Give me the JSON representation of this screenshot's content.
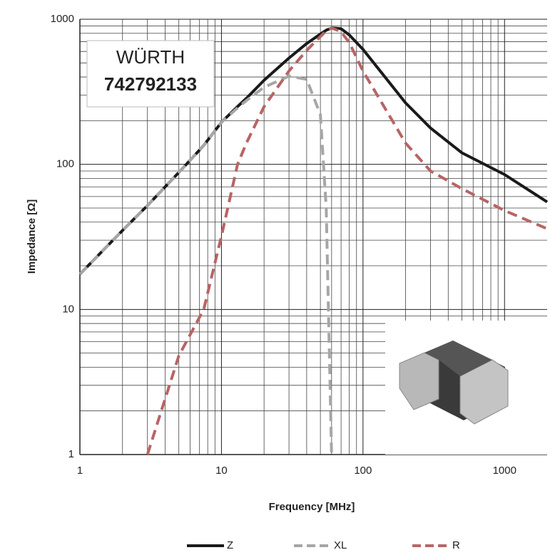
{
  "chart_data": {
    "type": "line",
    "annotation": {
      "brand": "WÜRTH",
      "part_number": "742792133"
    },
    "x_label": "Frequency [MHz]",
    "y_label": "Impedance [Ω]",
    "x": [
      1,
      2,
      3,
      5,
      7.5,
      10,
      13,
      15,
      20,
      30,
      40,
      50,
      55,
      60,
      70,
      80,
      100,
      200,
      300,
      500,
      1000,
      2000
    ],
    "series": [
      {
        "name": "Z",
        "color": "#1a1a1a",
        "style": "solid",
        "values": [
          17.5,
          35,
          52,
          88,
          135,
          195,
          250,
          285,
          380,
          540,
          680,
          790,
          840,
          870,
          860,
          780,
          620,
          265,
          178,
          120,
          85,
          55
        ]
      },
      {
        "name": "XL",
        "color": "#a6a6a6",
        "style": "dashed",
        "values": [
          17.5,
          35,
          52,
          88,
          135,
          195,
          245,
          275,
          340,
          405,
          385,
          220,
          50,
          1,
          null,
          null,
          null,
          null,
          null,
          null,
          null,
          null
        ]
      },
      {
        "name": "R",
        "color": "#b86464",
        "style": "dashed",
        "values": [
          null,
          null,
          1,
          4.8,
          10,
          32,
          100,
          140,
          250,
          440,
          610,
          760,
          830,
          870,
          820,
          690,
          440,
          140,
          90,
          68,
          48,
          36
        ]
      }
    ],
    "xlim": [
      1,
      2000
    ],
    "ylim": [
      1,
      1000
    ],
    "xticks": [
      1,
      10,
      100,
      1000
    ],
    "yticks": [
      1,
      10,
      100,
      1000
    ],
    "log_x": true,
    "log_y": true,
    "grid": true,
    "minor_grid": true,
    "legend": "bottom"
  }
}
